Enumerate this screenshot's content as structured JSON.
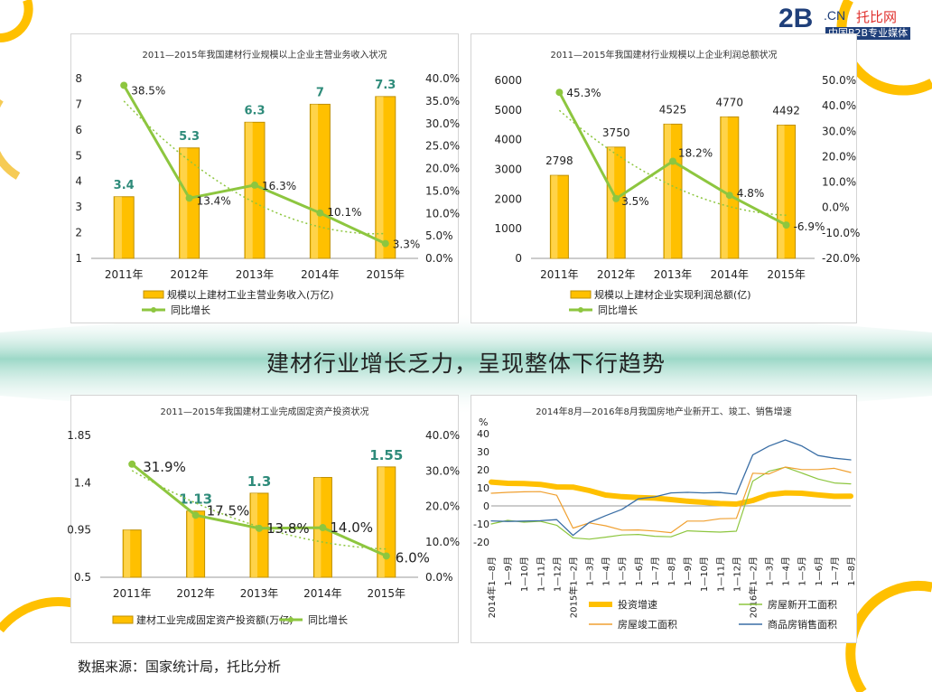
{
  "headline": "建材行业增长乏力，呈现整体下行趋势",
  "source": "数据来源：国家统计局，托比分析",
  "logo": {
    "main": "2B",
    "cn": ".CN",
    "brand": "托比网",
    "slogan": "中国B2B专业媒体"
  },
  "colors": {
    "bar": "#FFC000",
    "barEdge": "#BF8F00",
    "line": "#8DC63F",
    "label": "#2E8B7A",
    "orange": "#FFC000",
    "accent": "#FFB800",
    "teal": "#7CCBB5",
    "navy": "#1F3F7A"
  },
  "chart_data": [
    {
      "id": "c1",
      "type": "bar",
      "title": "2011—2015年我国建材行业规模以上企业主营业务收入状况",
      "categories": [
        "2011年",
        "2012年",
        "2013年",
        "2014年",
        "2015年"
      ],
      "values": [
        3.4,
        5.3,
        6.3,
        7,
        7.3
      ],
      "value_labels": [
        "3.4",
        "5.3",
        "6.3",
        "7",
        "7.3"
      ],
      "growth": [
        38.5,
        13.4,
        16.3,
        10.1,
        3.3
      ],
      "growth_labels": [
        "38.5%",
        "13.4%",
        "16.3%",
        "10.1%",
        "3.3%"
      ],
      "ylim": [
        1,
        8
      ],
      "yticks": [
        "1",
        "2",
        "3",
        "4",
        "5",
        "6",
        "7",
        "8"
      ],
      "y2lim": [
        0,
        40
      ],
      "y2ticks": [
        "0.0%",
        "5.0%",
        "10.0%",
        "15.0%",
        "20.0%",
        "25.0%",
        "30.0%",
        "35.0%",
        "40.0%"
      ],
      "legend": [
        "规模以上建材工业主营业务收入(万亿)",
        "同比增长"
      ]
    },
    {
      "id": "c2",
      "type": "bar",
      "title": "2011—2015年我国建材行业规模以上企业利润总额状况",
      "categories": [
        "2011年",
        "2012年",
        "2013年",
        "2014年",
        "2015年"
      ],
      "values": [
        2798,
        3750,
        4525,
        4770,
        4492
      ],
      "value_labels": [
        "2798",
        "3750",
        "4525",
        "4770",
        "4492"
      ],
      "growth": [
        45.3,
        3.5,
        18.2,
        4.8,
        -6.9
      ],
      "growth_labels": [
        "45.3%",
        "3.5%",
        "18.2%",
        "4.8%",
        "-6.9%"
      ],
      "ylim": [
        0,
        6000
      ],
      "yticks": [
        "0",
        "1000",
        "2000",
        "3000",
        "4000",
        "5000",
        "6000"
      ],
      "y2lim": [
        -20,
        50
      ],
      "y2ticks": [
        "-20.0%",
        "-10.0%",
        "0.0%",
        "10.0%",
        "20.0%",
        "30.0%",
        "40.0%",
        "50.0%"
      ],
      "legend": [
        "规模以上建材企业实现利润总额(亿)",
        "同比增长"
      ]
    },
    {
      "id": "c3",
      "type": "bar",
      "title": "2011—2015年我国建材工业完成固定资产投资状况",
      "categories": [
        "2011年",
        "2012年",
        "2013年",
        "2014年",
        "2015年"
      ],
      "values": [
        0.95,
        1.13,
        1.3,
        1.45,
        1.55
      ],
      "value_labels": [
        "",
        "1.13",
        "1.3",
        "",
        "1.55"
      ],
      "growth": [
        31.9,
        17.5,
        13.8,
        14.0,
        6.0
      ],
      "growth_labels": [
        "31.9%",
        "17.5%",
        "13.8%",
        "14.0%",
        "6.0%"
      ],
      "ylim": [
        0.5,
        1.85
      ],
      "yticks": [
        "0.5",
        "0.95",
        "1.4",
        "1.85"
      ],
      "y2lim": [
        0,
        40
      ],
      "y2ticks": [
        "0.0%",
        "10.0%",
        "20.0%",
        "30.0%",
        "40.0%"
      ],
      "legend": [
        "建材工业完成固定资产投资额(万亿)",
        "同比增长"
      ]
    },
    {
      "id": "c4",
      "type": "line",
      "title": "2014年8月—2016年8月我国房地产业新开工、竣工、销售增速",
      "ylabel": "%",
      "ylim": [
        -25,
        40
      ],
      "yticks": [
        "-20",
        "-10",
        "0",
        "10",
        "20",
        "30",
        "40"
      ],
      "x": [
        "2014年1—8月",
        "1—9月",
        "1—10月",
        "1—11月",
        "1—12月",
        "2015年1—2月",
        "1—3月",
        "1—4月",
        "1—5月",
        "1—6月",
        "1—7月",
        "1—8月",
        "1—9月",
        "1—10月",
        "1—11月",
        "1—12月",
        "2016年1—2月",
        "1—3月",
        "1—4月",
        "1—5月",
        "1—6月",
        "1—7月",
        "1—8月"
      ],
      "series": [
        {
          "name": "投资增速",
          "values": [
            13.2,
            12.5,
            12.4,
            11.9,
            10.5,
            10.4,
            8.5,
            6.0,
            5.1,
            4.6,
            4.3,
            3.5,
            2.6,
            2.0,
            1.3,
            1.0,
            3.0,
            6.2,
            7.2,
            7.0,
            6.1,
            5.3,
            5.4
          ]
        },
        {
          "name": "房屋新开工面积",
          "values": [
            -10,
            -8,
            -9,
            -8.5,
            -10.7,
            -17.7,
            -18.4,
            -17.3,
            -16.1,
            -15.8,
            -16.8,
            -17.1,
            -13.8,
            -14.2,
            -14.5,
            -14.0,
            13.7,
            19.2,
            21.4,
            18.2,
            14.9,
            12.7,
            12.2
          ]
        },
        {
          "name": "房屋竣工面积",
          "values": [
            7,
            7.5,
            7.8,
            7.9,
            5.9,
            -12.3,
            -9.4,
            -11.0,
            -13.4,
            -13.3,
            -13.9,
            -14.8,
            -8.4,
            -8.4,
            -7.1,
            -6.9,
            18.1,
            17.7,
            21.5,
            20.1,
            20.1,
            20.8,
            18.5
          ]
        },
        {
          "name": "商品房销售面积",
          "values": [
            -8.3,
            -8.6,
            -8.4,
            -8.2,
            -7.6,
            -16.3,
            -9.2,
            -5.4,
            -1.9,
            3.9,
            5.0,
            7.2,
            7.5,
            7.2,
            7.4,
            6.5,
            28.2,
            33.1,
            36.5,
            33.2,
            27.9,
            26.4,
            25.5
          ]
        }
      ],
      "legend": [
        "投资增速",
        "房屋新开工面积",
        "房屋竣工面积",
        "商品房销售面积"
      ]
    }
  ]
}
